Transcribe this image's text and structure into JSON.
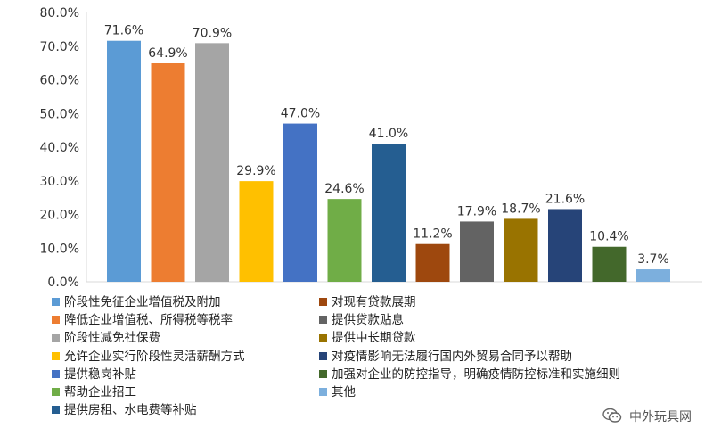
{
  "chart_data": {
    "type": "bar",
    "ylim": [
      0,
      80
    ],
    "yticks": [
      "0.0%",
      "10.0%",
      "20.0%",
      "30.0%",
      "40.0%",
      "50.0%",
      "60.0%",
      "70.0%",
      "80.0%"
    ],
    "grid": false,
    "legend_position": "bottom",
    "categories": [
      "阶段性免征企业增值税及附加",
      "降低企业增值税、所得税等税率",
      "阶段性减免社保费",
      "允许企业实行阶段性灵活薪酬方式",
      "提供稳岗补贴",
      "帮助企业招工",
      "提供房租、水电费等补贴",
      "对现有贷款展期",
      "提供贷款贴息",
      "提供中长期贷款",
      "对疫情影响无法履行国内外贸易合同予以帮助",
      "加强对企业的防控指导，明确疫情防控标准和实施细则",
      "其他"
    ],
    "values": [
      71.6,
      64.9,
      70.9,
      29.9,
      47.0,
      24.6,
      41.0,
      11.2,
      17.9,
      18.7,
      21.6,
      10.4,
      3.7
    ],
    "value_labels": [
      "71.6%",
      "64.9%",
      "70.9%",
      "29.9%",
      "47.0%",
      "24.6%",
      "41.0%",
      "11.2%",
      "17.9%",
      "18.7%",
      "21.6%",
      "10.4%",
      "3.7%"
    ],
    "colors": [
      "#5b9bd5",
      "#ed7d31",
      "#a5a5a5",
      "#ffc000",
      "#4472c4",
      "#70ad47",
      "#255e91",
      "#9e480e",
      "#636363",
      "#997300",
      "#264478",
      "#43682b",
      "#7cafdd"
    ]
  },
  "watermark": {
    "text": "中外玩具网",
    "icon": "wechat-icon"
  }
}
